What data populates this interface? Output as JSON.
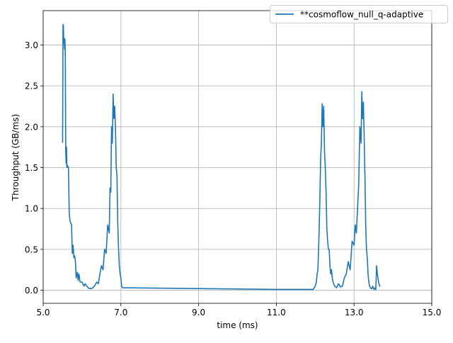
{
  "chart_data": {
    "type": "line",
    "title": "",
    "xlabel": "time (ms)",
    "ylabel": "Throughput (GB/ms)",
    "xlim": [
      5.0,
      15.0
    ],
    "ylim": [
      -0.16,
      3.42
    ],
    "grid": true,
    "legend_position": "top-right",
    "x_ticks": [
      5.0,
      7.0,
      9.0,
      11.0,
      13.0,
      15.0
    ],
    "x_tick_labels": [
      "5.0",
      "7.0",
      "9.0",
      "11.0",
      "13.0",
      "15.0"
    ],
    "y_ticks": [
      0.0,
      0.5,
      1.0,
      1.5,
      2.0,
      2.5,
      3.0
    ],
    "y_tick_labels": [
      "0.0",
      "0.5",
      "1.0",
      "1.5",
      "2.0",
      "2.5",
      "3.0"
    ],
    "series": [
      {
        "name": "**cosmoflow_null_q-adaptive",
        "color": "#1f77b4",
        "x": [
          5.5,
          5.51,
          5.52,
          5.53,
          5.54,
          5.55,
          5.56,
          5.57,
          5.58,
          5.59,
          5.6,
          5.61,
          5.62,
          5.63,
          5.65,
          5.67,
          5.69,
          5.71,
          5.73,
          5.75,
          5.77,
          5.79,
          5.81,
          5.83,
          5.85,
          5.88,
          5.9,
          5.92,
          5.95,
          6.0,
          6.05,
          6.08,
          6.12,
          6.18,
          6.25,
          6.32,
          6.38,
          6.42,
          6.46,
          6.5,
          6.54,
          6.58,
          6.62,
          6.66,
          6.7,
          6.72,
          6.74,
          6.76,
          6.78,
          6.8,
          6.82,
          6.84,
          6.86,
          6.88,
          6.9,
          6.92,
          6.94,
          6.96,
          6.98,
          7.0,
          7.02,
          7.04,
          7.06,
          7.08,
          9.0,
          11.0,
          11.5,
          11.95,
          12.0,
          12.03,
          12.05,
          12.07,
          12.09,
          12.1,
          12.12,
          12.14,
          12.16,
          12.18,
          12.2,
          12.22,
          12.24,
          12.26,
          12.28,
          12.3,
          12.32,
          12.34,
          12.36,
          12.38,
          12.4,
          12.42,
          12.44,
          12.46,
          12.5,
          12.55,
          12.6,
          12.65,
          12.7,
          12.75,
          12.8,
          12.85,
          12.9,
          12.95,
          13.0,
          13.03,
          13.06,
          13.09,
          13.12,
          13.15,
          13.18,
          13.2,
          13.22,
          13.24,
          13.26,
          13.28,
          13.3,
          13.32,
          13.34,
          13.36,
          13.38,
          13.4,
          13.42,
          13.44,
          13.46,
          13.48,
          13.5,
          13.52,
          13.54,
          13.56,
          13.58,
          13.6,
          13.63,
          13.66
        ],
        "y": [
          1.81,
          3.25,
          3.24,
          3.02,
          3.08,
          2.95,
          3.07,
          2.86,
          1.72,
          1.55,
          1.75,
          1.5,
          1.53,
          1.52,
          1.5,
          0.95,
          0.85,
          0.82,
          0.8,
          0.45,
          0.55,
          0.4,
          0.42,
          0.35,
          0.15,
          0.22,
          0.12,
          0.2,
          0.1,
          0.1,
          0.05,
          0.08,
          0.05,
          0.02,
          0.02,
          0.05,
          0.1,
          0.08,
          0.2,
          0.3,
          0.25,
          0.5,
          0.45,
          0.8,
          0.7,
          1.25,
          1.2,
          2.0,
          1.8,
          2.4,
          2.1,
          2.25,
          2.0,
          1.5,
          1.4,
          0.8,
          0.5,
          0.3,
          0.2,
          0.15,
          0.05,
          0.03,
          0.03,
          0.03,
          0.02,
          0.01,
          0.01,
          0.01,
          0.05,
          0.1,
          0.2,
          0.25,
          0.55,
          0.7,
          1.1,
          1.6,
          1.8,
          2.28,
          2.0,
          2.25,
          1.7,
          1.5,
          1.2,
          0.75,
          0.6,
          0.5,
          0.5,
          0.3,
          0.2,
          0.25,
          0.15,
          0.1,
          0.05,
          0.03,
          0.08,
          0.04,
          0.05,
          0.15,
          0.2,
          0.35,
          0.25,
          0.6,
          0.55,
          0.8,
          0.7,
          1.0,
          1.3,
          2.0,
          1.8,
          2.43,
          2.1,
          2.3,
          1.9,
          1.4,
          0.8,
          0.5,
          0.4,
          0.2,
          0.1,
          0.05,
          0.03,
          0.02,
          0.02,
          0.05,
          0.02,
          0.01,
          0.03,
          0.01,
          0.3,
          0.2,
          0.1,
          0.05
        ]
      }
    ]
  }
}
